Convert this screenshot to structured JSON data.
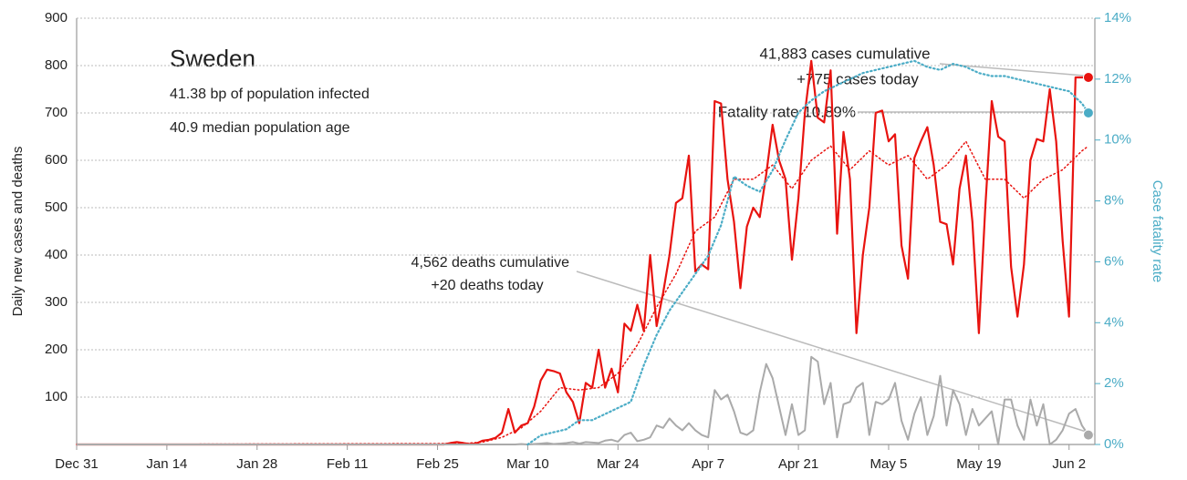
{
  "chart_data": {
    "type": "line",
    "title": "Sweden",
    "notes": [
      "41.38 bp of population infected",
      "40.9 median population age"
    ],
    "annotations": [
      "41,883 cases cumulative",
      "+775 cases today",
      "Fatality rate 10.89%",
      "4,562 deaths cumulative",
      "+20 deaths today"
    ],
    "ylabel": "Daily new cases and deaths",
    "y2label": "Case fatality rate",
    "xlim": [
      0,
      158
    ],
    "xticks": [
      {
        "value": 0,
        "label": "Dec 31"
      },
      {
        "value": 14,
        "label": "Jan 14"
      },
      {
        "value": 28,
        "label": "Jan 28"
      },
      {
        "value": 42,
        "label": "Feb 11"
      },
      {
        "value": 56,
        "label": "Feb 25"
      },
      {
        "value": 70,
        "label": "Mar 10"
      },
      {
        "value": 84,
        "label": "Mar 24"
      },
      {
        "value": 98,
        "label": "Apr 7"
      },
      {
        "value": 112,
        "label": "Apr 21"
      },
      {
        "value": 126,
        "label": "May 5"
      },
      {
        "value": 140,
        "label": "May 19"
      },
      {
        "value": 154,
        "label": "Jun 2"
      }
    ],
    "ylim": [
      0,
      900
    ],
    "yticks": [
      100,
      200,
      300,
      400,
      500,
      600,
      700,
      800,
      900
    ],
    "y2lim": [
      0,
      14
    ],
    "y2ticks": [
      {
        "value": 0,
        "label": "0%"
      },
      {
        "value": 2,
        "label": "2%"
      },
      {
        "value": 4,
        "label": "4%"
      },
      {
        "value": 6,
        "label": "6%"
      },
      {
        "value": 8,
        "label": "8%"
      },
      {
        "value": 10,
        "label": "10%"
      },
      {
        "value": 12,
        "label": "12%"
      },
      {
        "value": 14,
        "label": "14%"
      }
    ],
    "grid": true,
    "series": [
      {
        "color": "#e8130f",
        "style": "solid",
        "width": 2.2,
        "end_dot": true,
        "x": [
          0,
          56,
          57,
          58,
          59,
          60,
          61,
          62,
          63,
          64,
          65,
          66,
          67,
          68,
          69,
          70,
          71,
          72,
          73,
          74,
          75,
          76,
          77,
          78,
          79,
          80,
          81,
          82,
          83,
          84,
          85,
          86,
          87,
          88,
          89,
          90,
          91,
          92,
          93,
          94,
          95,
          96,
          97,
          98,
          99,
          100,
          101,
          102,
          103,
          104,
          105,
          106,
          107,
          108,
          109,
          110,
          111,
          112,
          113,
          114,
          115,
          116,
          117,
          118,
          119,
          120,
          121,
          122,
          123,
          124,
          125,
          126,
          127,
          128,
          129,
          130,
          131,
          132,
          133,
          134,
          135,
          136,
          137,
          138,
          139,
          140,
          141,
          142,
          143,
          144,
          145,
          146,
          147,
          148,
          149,
          150,
          151,
          152,
          153,
          154,
          155,
          156,
          157
        ],
        "values": [
          0,
          0,
          0,
          3,
          5,
          3,
          1,
          2,
          8,
          10,
          14,
          25,
          75,
          25,
          40,
          45,
          80,
          135,
          158,
          155,
          150,
          110,
          90,
          45,
          130,
          120,
          200,
          120,
          160,
          110,
          255,
          240,
          295,
          240,
          400,
          250,
          320,
          400,
          510,
          520,
          610,
          365,
          380,
          370,
          725,
          720,
          560,
          470,
          330,
          460,
          500,
          480,
          570,
          675,
          600,
          560,
          390,
          520,
          700,
          810,
          690,
          680,
          790,
          445,
          660,
          560,
          235,
          400,
          500,
          700,
          705,
          640,
          655,
          420,
          350,
          605,
          640,
          670,
          590,
          470,
          465,
          380,
          540,
          610,
          470,
          235,
          500,
          725,
          650,
          640,
          375,
          270,
          380,
          600,
          645,
          640,
          750,
          640,
          430,
          270,
          775,
          775,
          775
        ]
      },
      {
        "color": "#e8130f",
        "style": "dotted",
        "width": 1.5,
        "x": [
          0,
          60,
          63,
          66,
          69,
          72,
          75,
          78,
          81,
          84,
          87,
          90,
          93,
          96,
          99,
          102,
          105,
          108,
          111,
          114,
          117,
          120,
          123,
          126,
          129,
          132,
          135,
          138,
          141,
          144,
          147,
          150,
          153,
          156,
          157
        ],
        "values": [
          0,
          2,
          5,
          15,
          35,
          70,
          120,
          115,
          120,
          150,
          210,
          290,
          360,
          450,
          480,
          560,
          560,
          590,
          540,
          600,
          630,
          580,
          620,
          590,
          610,
          560,
          590,
          640,
          560,
          560,
          520,
          560,
          580,
          620,
          630
        ]
      },
      {
        "color": "#aaaaaa",
        "style": "solid",
        "width": 2,
        "end_dot": true,
        "x": [
          0,
          56,
          57,
          58,
          59,
          60,
          61,
          62,
          63,
          64,
          65,
          66,
          67,
          68,
          69,
          70,
          71,
          72,
          73,
          74,
          75,
          76,
          77,
          78,
          79,
          80,
          81,
          82,
          83,
          84,
          85,
          86,
          87,
          88,
          89,
          90,
          91,
          92,
          93,
          94,
          95,
          96,
          97,
          98,
          99,
          100,
          101,
          102,
          103,
          104,
          105,
          106,
          107,
          108,
          109,
          110,
          111,
          112,
          113,
          114,
          115,
          116,
          117,
          118,
          119,
          120,
          121,
          122,
          123,
          124,
          125,
          126,
          127,
          128,
          129,
          130,
          131,
          132,
          133,
          134,
          135,
          136,
          137,
          138,
          139,
          140,
          141,
          142,
          143,
          144,
          145,
          146,
          147,
          148,
          149,
          150,
          151,
          152,
          153,
          154,
          155,
          156,
          157
        ],
        "values": [
          0,
          0,
          0,
          0,
          0,
          0,
          0,
          0,
          0,
          0,
          0,
          0,
          0,
          0,
          1,
          0,
          1,
          2,
          3,
          1,
          2,
          3,
          5,
          2,
          5,
          4,
          3,
          8,
          10,
          6,
          20,
          25,
          7,
          10,
          15,
          40,
          35,
          55,
          40,
          30,
          45,
          30,
          20,
          15,
          115,
          95,
          105,
          70,
          25,
          20,
          30,
          110,
          170,
          140,
          80,
          20,
          85,
          20,
          30,
          185,
          175,
          85,
          130,
          15,
          85,
          90,
          120,
          130,
          20,
          90,
          85,
          95,
          130,
          50,
          10,
          65,
          100,
          20,
          60,
          145,
          40,
          115,
          85,
          20,
          75,
          40,
          55,
          70,
          0,
          95,
          95,
          40,
          10,
          95,
          40,
          85,
          0,
          10,
          30,
          65,
          75,
          40,
          20
        ]
      },
      {
        "color": "#4bacc6",
        "style": "dotted",
        "width": 2.2,
        "axis": "y2",
        "end_dot": true,
        "x": [
          70,
          72,
          74,
          76,
          78,
          80,
          82,
          84,
          86,
          88,
          90,
          92,
          94,
          96,
          98,
          100,
          102,
          104,
          106,
          108,
          110,
          112,
          114,
          116,
          118,
          120,
          122,
          124,
          126,
          128,
          130,
          132,
          134,
          136,
          138,
          140,
          142,
          144,
          146,
          148,
          150,
          152,
          154,
          156,
          157
        ],
        "values": [
          0.0,
          0.3,
          0.4,
          0.5,
          0.8,
          0.8,
          1.0,
          1.2,
          1.4,
          2.6,
          3.6,
          4.4,
          5.0,
          5.6,
          6.2,
          7.2,
          8.8,
          8.5,
          8.3,
          9.0,
          10.0,
          10.9,
          11.3,
          11.6,
          11.8,
          12.0,
          12.2,
          12.3,
          12.4,
          12.5,
          12.6,
          12.4,
          12.3,
          12.5,
          12.4,
          12.2,
          12.1,
          12.1,
          12.0,
          11.9,
          11.8,
          11.7,
          11.6,
          11.2,
          10.89
        ]
      }
    ]
  }
}
